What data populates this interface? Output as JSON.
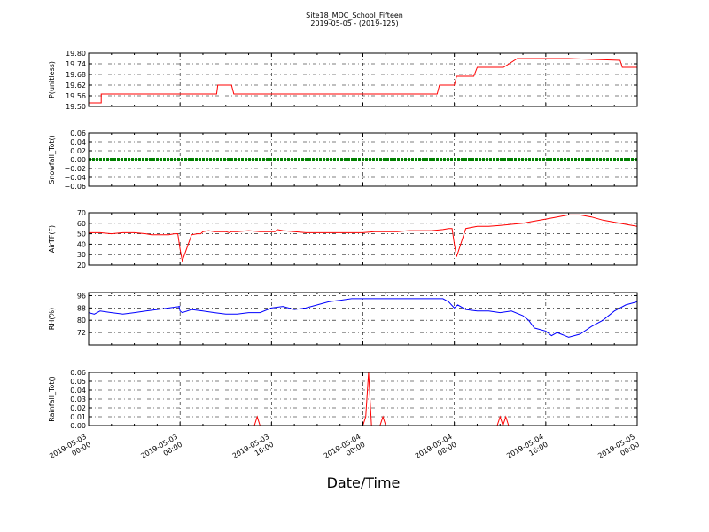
{
  "figure": {
    "title_line1": "Site18_MDC_School_Fifteen",
    "title_line2": "2019-05-05 - (2019-125)",
    "xlabel": "Date/Time"
  },
  "chart_data": [
    {
      "type": "line",
      "ylabel": "P(unitless)",
      "ylim": [
        19.5,
        19.8
      ],
      "yticks": [
        "19.80",
        "19.74",
        "19.68",
        "19.62",
        "19.56",
        "19.50"
      ],
      "ytick_values": [
        19.8,
        19.74,
        19.68,
        19.62,
        19.56,
        19.5
      ],
      "grid": true,
      "color": "#ff0000",
      "x": [
        0,
        1.1,
        1.1,
        7,
        11.2,
        11.3,
        12.5,
        12.7,
        19,
        25,
        30.5,
        30.7,
        32,
        32.2,
        33.5,
        33.7,
        34,
        36,
        36.3,
        37.5,
        37.7,
        42,
        46.5,
        46.7,
        48
      ],
      "y": [
        19.52,
        19.52,
        19.57,
        19.57,
        19.57,
        19.62,
        19.62,
        19.57,
        19.57,
        19.57,
        19.57,
        19.62,
        19.62,
        19.67,
        19.67,
        19.67,
        19.72,
        19.72,
        19.72,
        19.77,
        19.77,
        19.77,
        19.76,
        19.72,
        19.72
      ]
    },
    {
      "type": "line",
      "ylabel": "Snowfall_Tot()",
      "ylim": [
        -0.06,
        0.06
      ],
      "yticks": [
        "0.06",
        "0.04",
        "0.02",
        "0.00",
        "−0.02",
        "−0.04",
        "−0.06"
      ],
      "ytick_values": [
        0.06,
        0.04,
        0.02,
        0.0,
        -0.02,
        -0.04,
        -0.06
      ],
      "grid": true,
      "color": "#008000",
      "x": [
        0,
        48
      ],
      "y": [
        0.0,
        0.0
      ]
    },
    {
      "type": "line",
      "ylabel": "AirTF(F)",
      "ylim": [
        20,
        70
      ],
      "yticks": [
        "70",
        "60",
        "50",
        "40",
        "30",
        "20"
      ],
      "ytick_values": [
        70,
        60,
        50,
        40,
        30,
        20
      ],
      "grid": true,
      "color": "#ff0000",
      "x": [
        0,
        1,
        2,
        3,
        4,
        5,
        5.5,
        6,
        7,
        7.5,
        7.8,
        8,
        8.2,
        9,
        9.5,
        9.8,
        10,
        10.5,
        11,
        12,
        12.3,
        12.5,
        13,
        14,
        15,
        16,
        16.3,
        16.5,
        17,
        18,
        19,
        20,
        21,
        22,
        23,
        24,
        25,
        26,
        27,
        28,
        29,
        30,
        31,
        31.5,
        31.8,
        32,
        32.2,
        33,
        34,
        35,
        36,
        37,
        38,
        39,
        40,
        41,
        41.5,
        42,
        43,
        44,
        45,
        46,
        47,
        48
      ],
      "y": [
        51,
        51,
        50,
        51,
        51,
        50,
        49,
        49,
        49,
        50,
        50,
        35,
        24,
        49,
        50,
        50,
        52,
        53,
        52,
        52,
        51,
        52,
        52,
        53,
        52,
        52,
        52,
        54,
        53,
        52,
        51,
        51,
        51,
        51,
        51,
        51,
        52,
        52,
        52,
        53,
        53,
        53,
        54,
        55,
        55,
        40,
        28,
        55,
        57,
        57,
        58,
        59,
        60,
        62,
        64,
        66,
        67,
        68,
        68,
        66,
        63,
        61,
        59,
        57
      ]
    },
    {
      "type": "line",
      "ylabel": "RH(%)",
      "ylim": [
        64,
        98
      ],
      "yticks": [
        "96",
        "88",
        "80",
        "72"
      ],
      "ytick_values": [
        96,
        88,
        80,
        72
      ],
      "grid": true,
      "color": "#0000ff",
      "x": [
        0,
        0.5,
        1,
        2,
        3,
        4,
        5,
        6,
        7,
        8,
        7.9,
        8,
        8.2,
        9,
        10,
        11,
        12,
        13,
        14,
        15,
        16,
        17,
        18,
        19,
        20,
        21,
        22,
        23,
        24,
        25,
        26,
        27,
        28,
        29,
        30,
        31,
        31.5,
        32,
        32.3,
        33,
        34,
        35,
        36,
        37,
        38,
        38.5,
        39,
        40,
        40.5,
        41,
        42,
        43,
        44,
        45,
        46,
        47,
        48
      ],
      "y": [
        85,
        84,
        86,
        85,
        84,
        85,
        86,
        87,
        88,
        89,
        89,
        86,
        85,
        87,
        86,
        85,
        84,
        84,
        85,
        85,
        88,
        89,
        87,
        88,
        90,
        92,
        93,
        94,
        94,
        94,
        94,
        94,
        94,
        94,
        94,
        94,
        92,
        88,
        90,
        87,
        86,
        86,
        85,
        86,
        83,
        80,
        75,
        73,
        70,
        72,
        69,
        71,
        76,
        80,
        86,
        90,
        92
      ]
    },
    {
      "type": "line",
      "ylabel": "Rainfall_Tot()",
      "ylim": [
        0.0,
        0.06
      ],
      "yticks": [
        "0.06",
        "0.05",
        "0.04",
        "0.03",
        "0.02",
        "0.01",
        "0.00"
      ],
      "ytick_values": [
        0.06,
        0.05,
        0.04,
        0.03,
        0.02,
        0.01,
        0.0
      ],
      "grid": true,
      "color": "#ff0000",
      "x": [
        0,
        14.5,
        14.75,
        15.0,
        24.0,
        24.25,
        24.5,
        24.75,
        25.5,
        25.75,
        26.0,
        35.75,
        36.0,
        36.25,
        36.5,
        36.75,
        37.0,
        48
      ],
      "y": [
        0.0,
        0.0,
        0.01,
        0.0,
        0.0,
        0.01,
        0.06,
        0.0,
        0.0,
        0.01,
        0.0,
        0.0,
        0.01,
        0.0,
        0.01,
        0.0,
        0.0,
        0.0
      ]
    }
  ],
  "x_axis": {
    "hours_span": 48,
    "ticks": [
      {
        "line1": "2019-05-03",
        "line2": "00:00",
        "hour": 0
      },
      {
        "line1": "2019-05-03",
        "line2": "08:00",
        "hour": 8
      },
      {
        "line1": "2019-05-03",
        "line2": "16:00",
        "hour": 16
      },
      {
        "line1": "2019-05-04",
        "line2": "00:00",
        "hour": 24
      },
      {
        "line1": "2019-05-04",
        "line2": "08:00",
        "hour": 32
      },
      {
        "line1": "2019-05-04",
        "line2": "16:00",
        "hour": 40
      },
      {
        "line1": "2019-05-05",
        "line2": "00:00",
        "hour": 48
      }
    ]
  }
}
